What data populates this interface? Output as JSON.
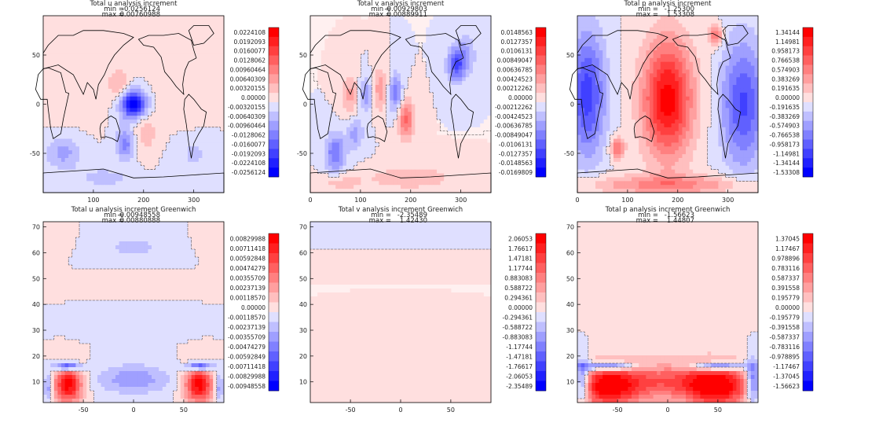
{
  "colors": {
    "blue": "#0000ff",
    "white": "#ffffff",
    "red": "#ff0000",
    "contour": "#333333",
    "coast": "#000000"
  },
  "chart_data": [
    {
      "type": "heatmap",
      "title": "Total u analysis increment",
      "min_label": "min =",
      "min_value": "-0.0256124",
      "max_label": "max =",
      "max_value": "0.00760988",
      "xlim": [
        0,
        360
      ],
      "ylim": [
        -90,
        90
      ],
      "xticks": [
        "100",
        "200",
        "300"
      ],
      "yticks": [
        "-50",
        "0",
        "50"
      ],
      "map": true,
      "range": [
        -0.0256124,
        0.0224108
      ],
      "colorbar_labels": [
        "0.0224108",
        "0.0192093",
        "0.0160077",
        "0.0128062",
        "0.00960464",
        "0.00640309",
        "0.00320155",
        "0.00000",
        "-0.00320155",
        "-0.00640309",
        "-0.00960464",
        "-0.0128062",
        "-0.0160077",
        "-0.0192093",
        "-0.0224108",
        "-0.0256124"
      ],
      "blobs": [
        {
          "x": 180,
          "y": 0,
          "sx": 18,
          "sy": 10,
          "a": -1.0
        },
        {
          "x": 165,
          "y": -40,
          "sx": 14,
          "sy": 12,
          "a": -0.45
        },
        {
          "x": 150,
          "y": 20,
          "sx": 15,
          "sy": 12,
          "a": 0.25
        },
        {
          "x": 200,
          "y": -30,
          "sx": 20,
          "sy": 15,
          "a": 0.2
        },
        {
          "x": 40,
          "y": -50,
          "sx": 25,
          "sy": 12,
          "a": -0.3
        },
        {
          "x": 120,
          "y": -75,
          "sx": 40,
          "sy": 8,
          "a": -0.18
        },
        {
          "x": 280,
          "y": 10,
          "sx": 40,
          "sy": 25,
          "a": 0.12
        },
        {
          "x": 60,
          "y": 30,
          "sx": 40,
          "sy": 30,
          "a": 0.1
        },
        {
          "x": 300,
          "y": -50,
          "sx": 30,
          "sy": 15,
          "a": -0.15
        }
      ]
    },
    {
      "type": "heatmap",
      "title": "Total v analysis increment",
      "min_label": "min =",
      "min_value": "-0.00929803",
      "max_label": "max =",
      "max_value": "0.00889911",
      "xlim": [
        0,
        360
      ],
      "ylim": [
        -90,
        90
      ],
      "xticks": [
        "0",
        "100",
        "200",
        "300"
      ],
      "yticks": [
        "-50",
        "0",
        "50"
      ],
      "map": true,
      "range": [
        -0.0169809,
        0.0148563
      ],
      "colorbar_labels": [
        "0.0148563",
        "0.0127357",
        "0.0106131",
        "0.00849047",
        "0.00636785",
        "0.00424523",
        "0.00212262",
        "0.00000",
        "-0.00212262",
        "-0.00424523",
        "-0.00636785",
        "-0.00849047",
        "-0.0106131",
        "-0.0127357",
        "-0.0148563",
        "-0.0169809"
      ],
      "blobs": [
        {
          "x": 290,
          "y": 40,
          "sx": 12,
          "sy": 12,
          "a": -0.6
        },
        {
          "x": 310,
          "y": 50,
          "sx": 14,
          "sy": 14,
          "a": -0.3
        },
        {
          "x": 190,
          "y": -15,
          "sx": 12,
          "sy": 14,
          "a": 0.55
        },
        {
          "x": 170,
          "y": 10,
          "sx": 10,
          "sy": 15,
          "a": -0.45
        },
        {
          "x": 140,
          "y": 15,
          "sx": 10,
          "sy": 15,
          "a": 0.35
        },
        {
          "x": 110,
          "y": 10,
          "sx": 10,
          "sy": 12,
          "a": -0.35
        },
        {
          "x": 80,
          "y": 10,
          "sx": 12,
          "sy": 15,
          "a": 0.3
        },
        {
          "x": 50,
          "y": -50,
          "sx": 14,
          "sy": 14,
          "a": -0.5
        },
        {
          "x": 90,
          "y": -30,
          "sx": 12,
          "sy": 12,
          "a": -0.3
        },
        {
          "x": 200,
          "y": -75,
          "sx": 60,
          "sy": 8,
          "a": 0.25
        },
        {
          "x": 60,
          "y": -80,
          "sx": 30,
          "sy": 6,
          "a": 0.2
        }
      ]
    },
    {
      "type": "heatmap",
      "title": "Total p analysis increment",
      "min_label": "min =",
      "min_value": "-1.25300",
      "max_label": "max =",
      "max_value": "1.53308",
      "xlim": [
        0,
        360
      ],
      "ylim": [
        -90,
        90
      ],
      "xticks": [
        "0",
        "100",
        "200",
        "300"
      ],
      "yticks": [
        "-50",
        "0",
        "50"
      ],
      "map": true,
      "range": [
        -1.53308,
        1.34144
      ],
      "colorbar_labels": [
        "1.34144",
        "1.14981",
        "0.958173",
        "0.766538",
        "0.574903",
        "0.383269",
        "0.191635",
        "0.00000",
        "-0.191635",
        "-0.383269",
        "-0.574903",
        "-0.766538",
        "-0.958173",
        "-1.14981",
        "-1.34144",
        "-1.53308"
      ],
      "blobs": [
        {
          "x": 180,
          "y": 5,
          "sx": 35,
          "sy": 42,
          "a": 0.95
        },
        {
          "x": 20,
          "y": 10,
          "sx": 25,
          "sy": 45,
          "a": -0.7
        },
        {
          "x": 330,
          "y": 0,
          "sx": 30,
          "sy": 45,
          "a": -0.65
        },
        {
          "x": 275,
          "y": 70,
          "sx": 10,
          "sy": 8,
          "a": 0.5
        },
        {
          "x": 80,
          "y": -45,
          "sx": 10,
          "sy": 8,
          "a": 0.5
        },
        {
          "x": 180,
          "y": -82,
          "sx": 120,
          "sy": 7,
          "a": 0.4
        }
      ]
    },
    {
      "type": "heatmap",
      "title": "Total u analysis increment Greenwich",
      "min_label": "min =",
      "min_value": "-0.00948558",
      "max_label": "max =",
      "max_value": "0.00880888",
      "xlim": [
        -90,
        90
      ],
      "ylim": [
        2,
        72
      ],
      "xticks": [
        "-50",
        "0",
        "50"
      ],
      "yticks": [
        "10",
        "20",
        "30",
        "40",
        "50",
        "60",
        "70"
      ],
      "map": false,
      "range": [
        -0.00948558,
        0.00829988
      ],
      "colorbar_labels": [
        "0.00829988",
        "0.00711418",
        "0.00592848",
        "0.00474279",
        "0.00355709",
        "0.00237139",
        "0.00118570",
        "0.00000",
        "-0.00118570",
        "-0.00237139",
        "-0.00355709",
        "-0.00474279",
        "-0.00592849",
        "-0.00711418",
        "-0.00829988",
        "-0.00948558"
      ],
      "blobs": [
        {
          "x": -65,
          "y": 9,
          "sx": 10,
          "sy": 5,
          "a": 0.95
        },
        {
          "x": 65,
          "y": 9,
          "sx": 10,
          "sy": 5,
          "a": 0.95
        },
        {
          "x": -66,
          "y": 16,
          "sx": 9,
          "sy": 1.2,
          "a": -0.9
        },
        {
          "x": 66,
          "y": 16,
          "sx": 9,
          "sy": 1.2,
          "a": -0.9
        },
        {
          "x": 0,
          "y": 11,
          "sx": 25,
          "sy": 4,
          "a": -0.35
        },
        {
          "x": -85,
          "y": 8,
          "sx": 3,
          "sy": 4,
          "a": -0.4
        },
        {
          "x": 85,
          "y": 8,
          "sx": 3,
          "sy": 4,
          "a": -0.4
        },
        {
          "x": 0,
          "y": 62,
          "sx": 30,
          "sy": 4,
          "a": -0.15
        },
        {
          "x": 0,
          "y": 47,
          "sx": 40,
          "sy": 3,
          "a": 0.12
        },
        {
          "x": 0,
          "y": 35,
          "sx": 30,
          "sy": 4,
          "a": -0.12
        },
        {
          "x": -75,
          "y": 65,
          "sx": 10,
          "sy": 4,
          "a": 0.1
        },
        {
          "x": 75,
          "y": 65,
          "sx": 10,
          "sy": 4,
          "a": 0.1
        }
      ]
    },
    {
      "type": "heatmap",
      "title": "Total v analysis increment Greenwich",
      "min_label": "min =",
      "min_value": "-2.35489",
      "max_label": "max =",
      "max_value": "1.42430",
      "xlim": [
        -90,
        90
      ],
      "ylim": [
        2,
        72
      ],
      "xticks": [
        "-50",
        "0",
        "50"
      ],
      "yticks": [
        "10",
        "20",
        "30",
        "40",
        "50",
        "60",
        "70"
      ],
      "map": false,
      "range": [
        -2.35489,
        2.06053
      ],
      "colorbar_labels": [
        "2.06053",
        "1.76617",
        "1.47181",
        "1.17744",
        "0.883083",
        "0.588722",
        "0.294361",
        "0.00000",
        "-0.294361",
        "-0.588722",
        "-0.883083",
        "-1.17744",
        "-1.47181",
        "-1.76617",
        "-2.06053",
        "-2.35489"
      ],
      "blobs": [
        {
          "x": 0,
          "y": 58,
          "sx": 60,
          "sy": 2,
          "a": 0.06
        },
        {
          "x": 0,
          "y": 36,
          "sx": 25,
          "sy": 2,
          "a": 0.06
        },
        {
          "x": -30,
          "y": 10,
          "sx": 40,
          "sy": 6,
          "a": 0.05
        },
        {
          "x": 0,
          "y": 66,
          "sx": 60,
          "sy": 3,
          "a": -0.04
        }
      ]
    },
    {
      "type": "heatmap",
      "title": "Total p analysis increment Greenwich",
      "min_label": "min =",
      "min_value": "-1.56623",
      "max_label": "max =",
      "max_value": "1.44807",
      "xlim": [
        -90,
        90
      ],
      "ylim": [
        2,
        72
      ],
      "xticks": [
        "-50",
        "0",
        "50"
      ],
      "yticks": [
        "10",
        "20",
        "30",
        "40",
        "50",
        "60",
        "70"
      ],
      "map": false,
      "range": [
        -1.56623,
        1.37045
      ],
      "colorbar_labels": [
        "1.37045",
        "1.17467",
        "0.978896",
        "0.783116",
        "0.587337",
        "0.391558",
        "0.195779",
        "0.00000",
        "-0.195779",
        "-0.391558",
        "-0.587337",
        "-0.783116",
        "-0.978895",
        "-1.17467",
        "-1.37045",
        "-1.56623"
      ],
      "blobs": [
        {
          "x": -60,
          "y": 8,
          "sx": 22,
          "sy": 6,
          "a": 0.85
        },
        {
          "x": 50,
          "y": 8,
          "sx": 22,
          "sy": 6,
          "a": 0.85
        },
        {
          "x": 0,
          "y": 10,
          "sx": 45,
          "sy": 5,
          "a": 0.55
        },
        {
          "x": -60,
          "y": 16,
          "sx": 20,
          "sy": 1.2,
          "a": -0.8
        },
        {
          "x": 50,
          "y": 16,
          "sx": 20,
          "sy": 1.2,
          "a": -0.8
        },
        {
          "x": -85,
          "y": 10,
          "sx": 5,
          "sy": 6,
          "a": -0.7
        },
        {
          "x": 85,
          "y": 10,
          "sx": 5,
          "sy": 6,
          "a": -0.7
        },
        {
          "x": 0,
          "y": 45,
          "sx": 35,
          "sy": 20,
          "a": 0.08
        }
      ]
    }
  ]
}
